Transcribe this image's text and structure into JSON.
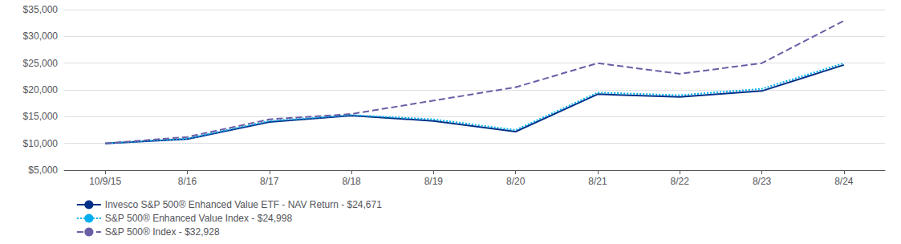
{
  "chart_data": {
    "type": "line",
    "categories": [
      "10/9/15",
      "8/16",
      "8/17",
      "8/18",
      "8/19",
      "8/20",
      "8/21",
      "8/22",
      "8/23",
      "8/24"
    ],
    "series": [
      {
        "name": "Invesco S&P 500® Enhanced Value ETF - NAV Return - $24,671",
        "color": "#003087",
        "line_style": "solid",
        "values": [
          10000,
          10800,
          14000,
          15200,
          14200,
          12200,
          19200,
          18700,
          19800,
          24671
        ]
      },
      {
        "name": "S&P 500® Enhanced Value Index - $24,998",
        "color": "#00AEEF",
        "line_style": "dotted",
        "values": [
          10000,
          10900,
          14200,
          15300,
          14500,
          12500,
          19500,
          19000,
          20200,
          24998
        ]
      },
      {
        "name": "S&P 500® Index - $32,928",
        "color": "#6A5FA6",
        "line_style": "dashed",
        "values": [
          10000,
          11200,
          14500,
          15500,
          18000,
          20500,
          25000,
          23000,
          25000,
          32928
        ]
      }
    ],
    "ylim": [
      5000,
      35000
    ],
    "yticks": [
      {
        "value": 5000,
        "label": "$5,000"
      },
      {
        "value": 10000,
        "label": "$10,000"
      },
      {
        "value": 15000,
        "label": "$15,000"
      },
      {
        "value": 20000,
        "label": "$20,000"
      },
      {
        "value": 25000,
        "label": "$25,000"
      },
      {
        "value": 30000,
        "label": "$30,000"
      },
      {
        "value": 35000,
        "label": "$35,000"
      }
    ],
    "grid": true,
    "legend": "bottom"
  }
}
